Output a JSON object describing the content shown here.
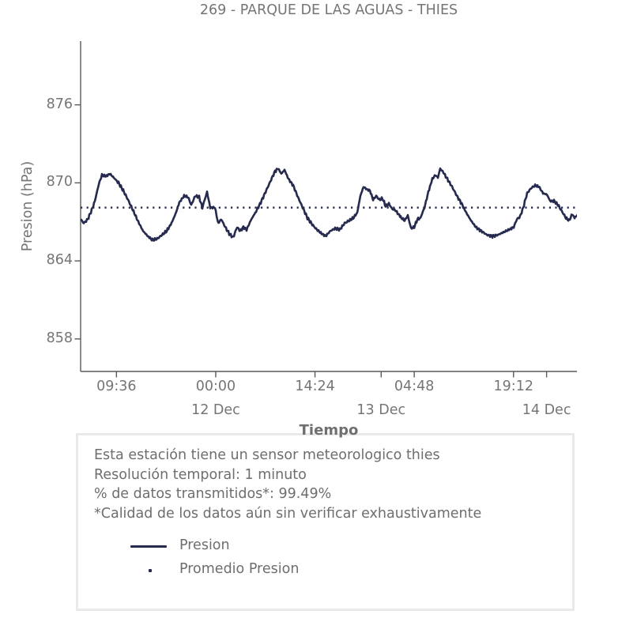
{
  "colors": {
    "line": "#262a4e",
    "axis": "#5a5a5a",
    "text": "#757575",
    "box_border": "#e9e9e9"
  },
  "chart_data": {
    "type": "line",
    "title": "269 - PARQUE DE LAS AGUAS - THIES",
    "xlabel": "Tiempo",
    "ylabel": "Presion (hPa)",
    "xlim": [
      4.4,
      76.4
    ],
    "ylim": [
      855.5,
      880.9
    ],
    "y_ticks": [
      858,
      864,
      870,
      876
    ],
    "x_ticks": [
      {
        "h": 9.6,
        "label": "09:36"
      },
      {
        "h": 24.0,
        "label": "00:00"
      },
      {
        "h": 38.4,
        "label": "14:24"
      },
      {
        "h": 52.8,
        "label": "04:48"
      },
      {
        "h": 67.2,
        "label": "19:12"
      }
    ],
    "date_ticks": [
      {
        "h": 24.0,
        "label": "12 Dec"
      },
      {
        "h": 48.0,
        "label": "13 Dec"
      },
      {
        "h": 72.0,
        "label": "14 Dec"
      }
    ],
    "grid": false,
    "legend_position": "below-in-info-box",
    "series": [
      {
        "name": "Presion",
        "style": "solid",
        "color": "#262a4e",
        "points": [
          [
            4.4,
            867.2
          ],
          [
            4.86,
            866.9
          ],
          [
            5.43,
            867.2
          ],
          [
            6.01,
            867.9
          ],
          [
            6.46,
            868.6
          ],
          [
            7.04,
            869.9
          ],
          [
            7.5,
            870.6
          ],
          [
            8.07,
            870.5
          ],
          [
            8.64,
            870.7
          ],
          [
            9.22,
            870.4
          ],
          [
            9.9,
            870.0
          ],
          [
            10.59,
            869.4
          ],
          [
            11.28,
            868.7
          ],
          [
            12.08,
            867.8
          ],
          [
            12.77,
            867.0
          ],
          [
            13.46,
            866.3
          ],
          [
            14.15,
            865.9
          ],
          [
            14.83,
            865.6
          ],
          [
            15.52,
            865.7
          ],
          [
            16.21,
            866.0
          ],
          [
            16.9,
            866.3
          ],
          [
            17.58,
            866.9
          ],
          [
            18.16,
            867.6
          ],
          [
            18.73,
            868.5
          ],
          [
            19.42,
            869.0
          ],
          [
            19.99,
            868.9
          ],
          [
            20.45,
            868.3
          ],
          [
            21.03,
            869.0
          ],
          [
            21.6,
            868.9
          ],
          [
            22.06,
            868.1
          ],
          [
            22.74,
            869.3
          ],
          [
            23.2,
            868.1
          ],
          [
            23.89,
            868.1
          ],
          [
            24.35,
            866.9
          ],
          [
            24.81,
            867.2
          ],
          [
            25.38,
            866.6
          ],
          [
            25.95,
            866.1
          ],
          [
            26.53,
            865.8
          ],
          [
            27.1,
            866.6
          ],
          [
            27.56,
            866.3
          ],
          [
            28.02,
            866.6
          ],
          [
            28.48,
            866.4
          ],
          [
            29.17,
            867.2
          ],
          [
            29.85,
            867.8
          ],
          [
            30.54,
            868.5
          ],
          [
            31.23,
            869.3
          ],
          [
            31.92,
            870.1
          ],
          [
            32.61,
            870.9
          ],
          [
            33.06,
            871.1
          ],
          [
            33.52,
            870.7
          ],
          [
            33.98,
            871.0
          ],
          [
            34.55,
            870.3
          ],
          [
            35.24,
            869.8
          ],
          [
            35.93,
            868.9
          ],
          [
            36.62,
            868.1
          ],
          [
            37.31,
            867.3
          ],
          [
            38.0,
            866.8
          ],
          [
            38.68,
            866.4
          ],
          [
            39.37,
            866.1
          ],
          [
            39.94,
            865.9
          ],
          [
            40.63,
            866.3
          ],
          [
            41.32,
            866.5
          ],
          [
            42.01,
            866.4
          ],
          [
            42.7,
            866.9
          ],
          [
            43.38,
            867.1
          ],
          [
            43.96,
            867.3
          ],
          [
            44.53,
            867.7
          ],
          [
            44.99,
            869.0
          ],
          [
            45.45,
            869.7
          ],
          [
            45.91,
            869.5
          ],
          [
            46.37,
            869.4
          ],
          [
            46.83,
            868.7
          ],
          [
            47.28,
            869.0
          ],
          [
            47.74,
            868.7
          ],
          [
            48.2,
            868.8
          ],
          [
            48.66,
            868.2
          ],
          [
            49.12,
            868.4
          ],
          [
            49.58,
            868.0
          ],
          [
            50.04,
            867.9
          ],
          [
            50.5,
            867.6
          ],
          [
            50.95,
            867.3
          ],
          [
            51.41,
            867.1
          ],
          [
            51.87,
            867.5
          ],
          [
            52.33,
            866.5
          ],
          [
            52.79,
            866.6
          ],
          [
            53.25,
            867.2
          ],
          [
            53.7,
            867.3
          ],
          [
            54.28,
            868.1
          ],
          [
            54.85,
            869.3
          ],
          [
            55.42,
            870.3
          ],
          [
            55.88,
            870.6
          ],
          [
            56.23,
            870.4
          ],
          [
            56.57,
            871.1
          ],
          [
            57.03,
            870.8
          ],
          [
            57.6,
            870.3
          ],
          [
            58.29,
            869.7
          ],
          [
            58.98,
            869.0
          ],
          [
            59.67,
            868.4
          ],
          [
            60.35,
            867.7
          ],
          [
            61.04,
            867.1
          ],
          [
            61.73,
            866.6
          ],
          [
            62.53,
            866.3
          ],
          [
            63.34,
            866.0
          ],
          [
            64.14,
            865.9
          ],
          [
            64.94,
            866.0
          ],
          [
            65.74,
            866.2
          ],
          [
            66.55,
            866.4
          ],
          [
            67.23,
            866.6
          ],
          [
            67.69,
            867.2
          ],
          [
            68.15,
            867.4
          ],
          [
            68.61,
            868.1
          ],
          [
            69.18,
            869.2
          ],
          [
            69.76,
            869.6
          ],
          [
            70.33,
            869.8
          ],
          [
            70.9,
            869.7
          ],
          [
            71.48,
            869.2
          ],
          [
            72.05,
            869.1
          ],
          [
            72.51,
            868.6
          ],
          [
            73.08,
            868.6
          ],
          [
            73.66,
            868.3
          ],
          [
            74.23,
            867.8
          ],
          [
            74.8,
            867.3
          ],
          [
            75.26,
            867.1
          ],
          [
            75.72,
            867.6
          ],
          [
            76.06,
            867.3
          ],
          [
            76.4,
            867.5
          ]
        ]
      },
      {
        "name": "Promedio Presion",
        "style": "dotted",
        "color": "#262a4e",
        "value": 868.1
      }
    ]
  },
  "info_box": {
    "lines": [
      "Esta estación tiene un sensor meteorologico thies",
      "Resolución temporal: 1 minuto",
      "% de datos transmitidos*: 99.49%",
      "*Calidad de los datos aún sin verificar exhaustivamente"
    ],
    "legend": [
      {
        "label": "Presion",
        "swatch": "line"
      },
      {
        "label": "Promedio Presion",
        "swatch": "dot"
      }
    ]
  }
}
